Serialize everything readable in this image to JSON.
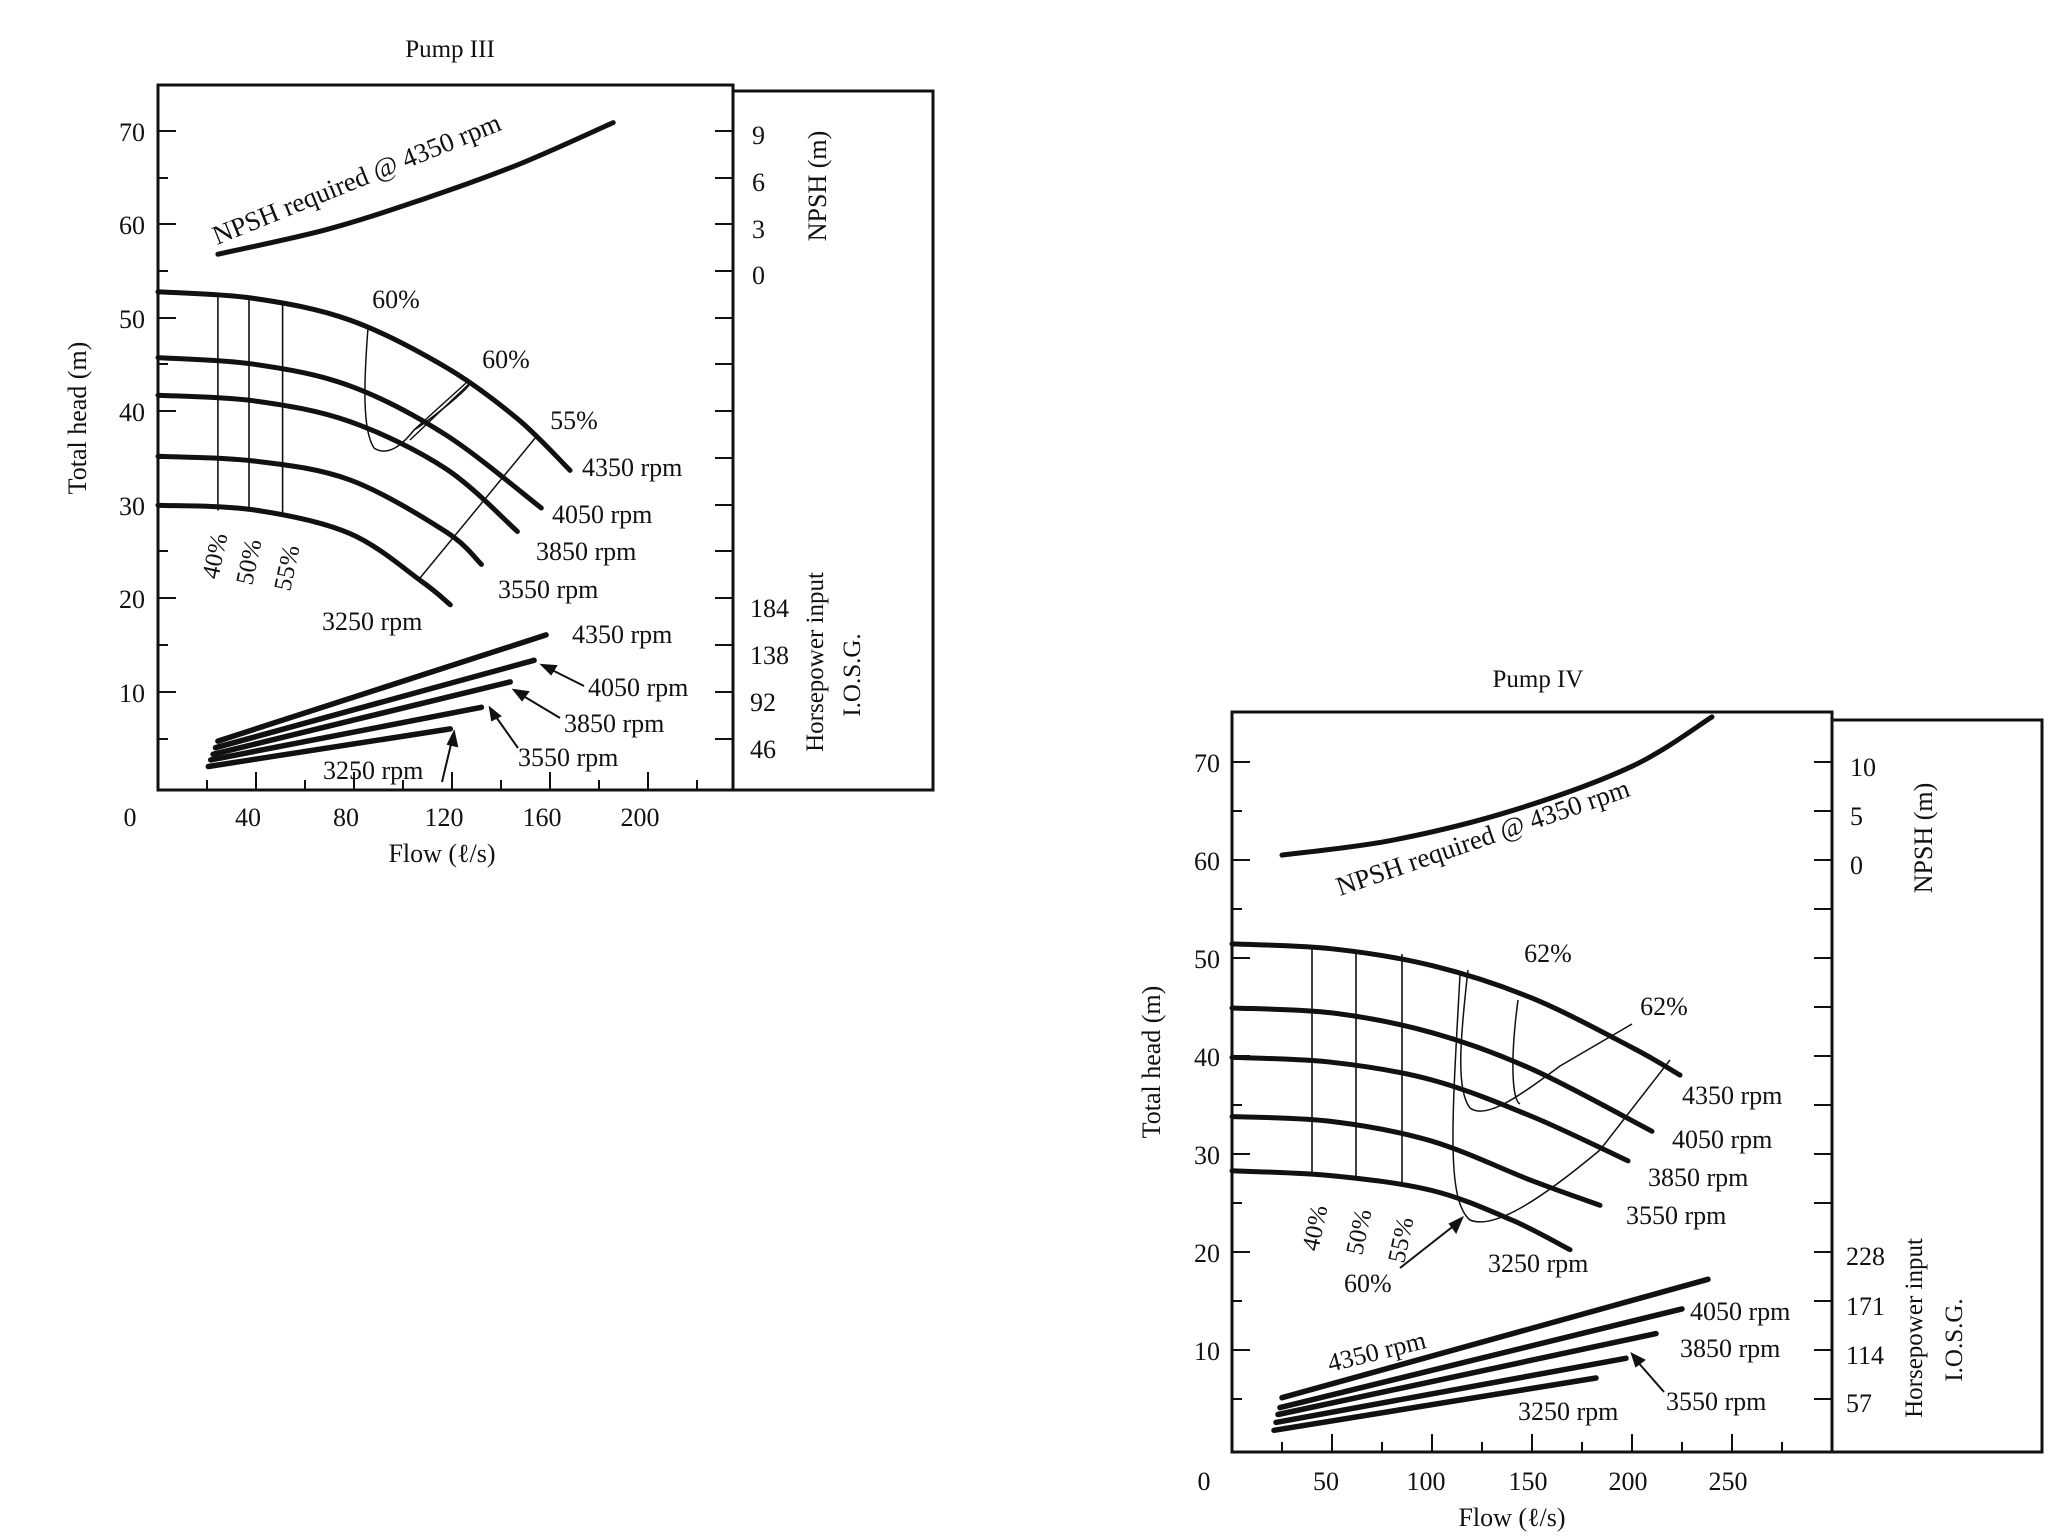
{
  "chart_data": [
    {
      "type": "line",
      "title": "Pump III",
      "xlabel": "Flow (ℓ/s)",
      "ylabel": "Total head (m)",
      "xlim": [
        0,
        240
      ],
      "ylim": [
        0,
        75
      ],
      "x_ticks": [
        0,
        40,
        80,
        120,
        160,
        200
      ],
      "y_ticks": [
        10,
        20,
        30,
        40,
        50,
        60,
        70
      ],
      "npsh_axis": {
        "label": "NPSH (m)",
        "ticks": [
          "9",
          "6",
          "3",
          "0"
        ],
        "tick_heads": [
          70,
          65,
          60,
          55
        ]
      },
      "power_axis": {
        "label": [
          "Horsepower input",
          "I.O.S.G."
        ],
        "ticks": [
          "184",
          "138",
          "92",
          "46"
        ],
        "tick_heads": [
          19,
          14,
          9,
          4
        ]
      },
      "npsh_curve": {
        "name": "NPSH required @ 4350 rpm",
        "x": [
          25,
          70,
          110,
          150,
          190
        ],
        "y": [
          57,
          59.6,
          62.8,
          66.5,
          71
        ]
      },
      "head_series": [
        {
          "name": "4350 rpm",
          "x": [
            0,
            40,
            80,
            120,
            150,
            172
          ],
          "y": [
            53,
            52.3,
            50,
            45,
            39.5,
            34
          ]
        },
        {
          "name": "4050 rpm",
          "x": [
            0,
            40,
            80,
            120,
            160
          ],
          "y": [
            46,
            45.3,
            43,
            37.8,
            30
          ]
        },
        {
          "name": "3850 rpm",
          "x": [
            0,
            40,
            80,
            120,
            150
          ],
          "y": [
            42,
            41.4,
            39.2,
            34.2,
            27.5
          ]
        },
        {
          "name": "3550 rpm",
          "x": [
            0,
            40,
            80,
            120,
            135
          ],
          "y": [
            35.5,
            35,
            33,
            27.5,
            24
          ]
        },
        {
          "name": "3250 rpm",
          "x": [
            0,
            40,
            80,
            110,
            122
          ],
          "y": [
            30.3,
            29.8,
            27.3,
            22.2,
            19.7
          ]
        }
      ],
      "power_series": [
        {
          "name": "4350 rpm",
          "x": [
            25,
            162
          ],
          "y": [
            5.2,
            16.5
          ]
        },
        {
          "name": "4050 rpm",
          "x": [
            24,
            157
          ],
          "y": [
            4.5,
            13.8
          ]
        },
        {
          "name": "3850 rpm",
          "x": [
            23,
            147
          ],
          "y": [
            3.8,
            11.5
          ]
        },
        {
          "name": "3550 rpm",
          "x": [
            22,
            135
          ],
          "y": [
            3.2,
            8.8
          ]
        },
        {
          "name": "3250 rpm",
          "x": [
            21,
            122
          ],
          "y": [
            2.5,
            6.5
          ]
        }
      ],
      "efficiency_lines": [
        {
          "label": "40%",
          "x": [
            25,
            25
          ],
          "y": [
            52.6,
            29.8
          ]
        },
        {
          "label": "50%",
          "x": [
            38,
            38
          ],
          "y": [
            52.4,
            29.7
          ]
        },
        {
          "label": "55%",
          "x": [
            52,
            52
          ],
          "y": [
            52,
            29.4
          ]
        }
      ],
      "efficiency_labels": [
        "60%",
        "60%",
        "55%"
      ],
      "power_labels": [
        "4350 rpm",
        "4050 rpm",
        "3850 rpm",
        "3550 rpm",
        "3250 rpm"
      ]
    },
    {
      "type": "line",
      "title": "Pump IV",
      "xlabel": "Flow (ℓ/s)",
      "ylabel": "Total head (m)",
      "xlim": [
        0,
        300
      ],
      "ylim": [
        0,
        75
      ],
      "x_ticks": [
        0,
        50,
        100,
        150,
        200,
        250
      ],
      "y_ticks": [
        10,
        20,
        30,
        40,
        50,
        60,
        70
      ],
      "npsh_axis": {
        "label": "NPSH (m)",
        "ticks": [
          "10",
          "5",
          "0"
        ],
        "tick_heads": [
          69,
          64,
          59
        ]
      },
      "power_axis": {
        "label": [
          "Horsepower input",
          "I.O.S.G."
        ],
        "ticks": [
          "228",
          "171",
          "114",
          "57"
        ],
        "tick_heads": [
          19.5,
          14.3,
          9.3,
          4.5
        ]
      },
      "npsh_curve": {
        "name": "NPSH required @ 4350 rpm",
        "x": [
          25,
          80,
          140,
          200,
          240
        ],
        "y": [
          60.5,
          62,
          65,
          69.5,
          74.5
        ]
      },
      "head_series": [
        {
          "name": "4350 rpm",
          "x": [
            0,
            50,
            100,
            150,
            200,
            224
          ],
          "y": [
            51.5,
            51,
            49.3,
            46,
            41,
            38.2
          ]
        },
        {
          "name": "4050 rpm",
          "x": [
            0,
            50,
            100,
            150,
            210
          ],
          "y": [
            45,
            44.5,
            42.5,
            38.8,
            32.5
          ]
        },
        {
          "name": "3850 rpm",
          "x": [
            0,
            50,
            100,
            150,
            198
          ],
          "y": [
            40,
            39.5,
            37.7,
            34,
            29.5
          ]
        },
        {
          "name": "3550 rpm",
          "x": [
            0,
            50,
            100,
            150,
            184
          ],
          "y": [
            34,
            33.5,
            31.5,
            27.5,
            25
          ]
        },
        {
          "name": "3250 rpm",
          "x": [
            0,
            50,
            100,
            140,
            169
          ],
          "y": [
            28.5,
            28,
            26.5,
            23.5,
            20.5
          ]
        }
      ],
      "power_series": [
        {
          "name": "4350 rpm",
          "x": [
            25,
            238
          ],
          "y": [
            5.5,
            17.5
          ]
        },
        {
          "name": "4050 rpm",
          "x": [
            24,
            225
          ],
          "y": [
            4.5,
            14.5
          ]
        },
        {
          "name": "3850 rpm",
          "x": [
            23,
            212
          ],
          "y": [
            3.8,
            12
          ]
        },
        {
          "name": "3550 rpm",
          "x": [
            22,
            197
          ],
          "y": [
            3,
            9.5
          ]
        },
        {
          "name": "3250 rpm",
          "x": [
            21,
            182
          ],
          "y": [
            2.2,
            7.5
          ]
        }
      ],
      "efficiency_lines": [
        {
          "label": "40%",
          "x": [
            40,
            40
          ],
          "y": [
            51,
            28
          ]
        },
        {
          "label": "50%",
          "x": [
            62,
            62
          ],
          "y": [
            50.8,
            27.8
          ]
        },
        {
          "label": "55%",
          "x": [
            85,
            85
          ],
          "y": [
            50.4,
            27.2
          ]
        }
      ],
      "efficiency_labels": [
        "62%",
        "62%",
        "60%"
      ],
      "power_labels": [
        "4350 rpm",
        "4050 rpm",
        "3850 rpm",
        "3550 rpm",
        "3250 rpm"
      ]
    }
  ]
}
